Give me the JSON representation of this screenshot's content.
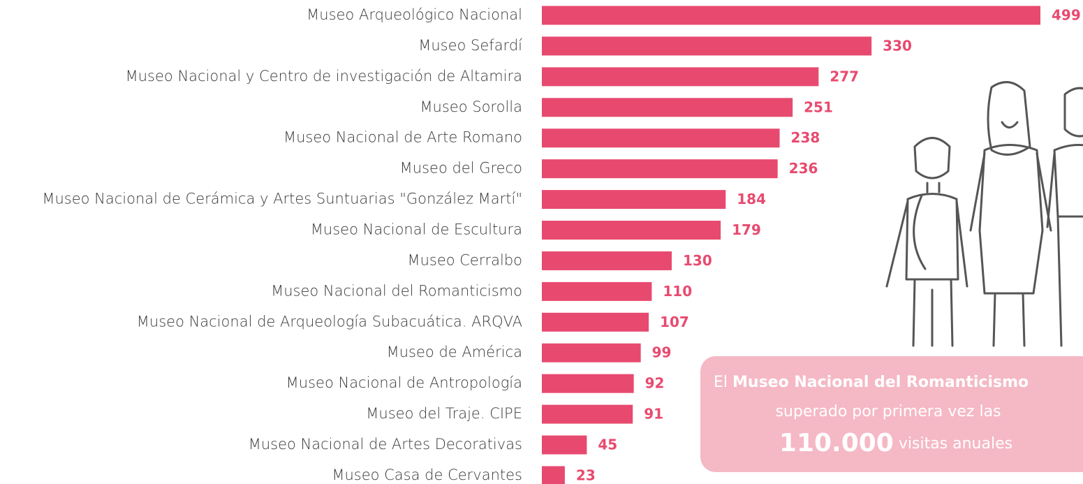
{
  "chart_data": {
    "type": "bar",
    "orientation": "horizontal",
    "categories": [
      "Museo Arqueológico Nacional",
      "Museo Sefardí",
      "Museo Nacional y Centro de investigación de Altamira",
      "Museo Sorolla",
      "Museo Nacional de Arte Romano",
      "Museo del Greco",
      "Museo Nacional de Cerámica y Artes Suntuarias \"González Martí\"",
      "Museo Nacional de Escultura",
      "Museo Cerralbo",
      "Museo Nacional del Romanticismo",
      "Museo Nacional de Arqueología Subacuática. ARQVA",
      "Museo de América",
      "Museo Nacional  de Antropología",
      "Museo del Traje. CIPE",
      "Museo Nacional de Artes Decorativas",
      "Museo Casa de Cervantes"
    ],
    "values": [
      499,
      330,
      277,
      251,
      238,
      236,
      184,
      179,
      130,
      110,
      107,
      99,
      92,
      91,
      45,
      23
    ],
    "color": "#e84a6f",
    "annotation": {
      "prefix": "El",
      "highlight": "Museo Nacional del Romanticismo",
      "line2": "superado por primera vez las",
      "number": "110.000",
      "suffix": "visitas anuales"
    }
  }
}
